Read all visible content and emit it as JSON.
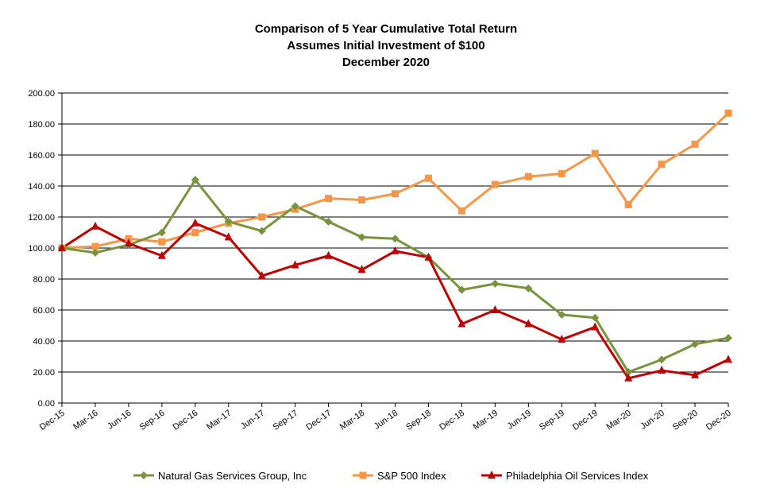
{
  "chart_data": {
    "type": "line",
    "title": "Comparison of 5 Year Cumulative Total Return",
    "subtitle": "Assumes Initial Investment of $100",
    "subtitle2": "December 2020",
    "xlabel": "",
    "ylabel": "",
    "ylim": [
      0,
      200
    ],
    "y_ticks": [
      "0.00",
      "20.00",
      "40.00",
      "60.00",
      "80.00",
      "100.00",
      "120.00",
      "140.00",
      "160.00",
      "180.00",
      "200.00"
    ],
    "grid": true,
    "legend_position": "bottom",
    "categories": [
      "Dec-15",
      "Mar-16",
      "Jun-16",
      "Sep-16",
      "Dec-16",
      "Mar-17",
      "Jun-17",
      "Sep-17",
      "Dec-17",
      "Mar-18",
      "Jun-18",
      "Sep-18",
      "Dec-18",
      "Mar-19",
      "Jun-19",
      "Sep-19",
      "Dec-19",
      "Mar-20",
      "Jun-20",
      "Sep-20",
      "Dec-20"
    ],
    "series": [
      {
        "name": "Natural Gas Services Group, Inc",
        "color": "#77933C",
        "marker": "diamond",
        "values": [
          100,
          97,
          102,
          110,
          144,
          117,
          111,
          127,
          117,
          107,
          106,
          94,
          73,
          77,
          74,
          57,
          55,
          20,
          28,
          38,
          42
        ]
      },
      {
        "name": "S&P 500 Index",
        "color": "#F79646",
        "marker": "square",
        "values": [
          100,
          101,
          106,
          104,
          110,
          116,
          120,
          125,
          132,
          131,
          135,
          145,
          124,
          141,
          146,
          148,
          161,
          128,
          154,
          167,
          187
        ]
      },
      {
        "name": "Philadelphia Oil Services Index",
        "color": "#C00000",
        "marker": "triangle",
        "values": [
          100,
          114,
          103,
          95,
          116,
          107,
          82,
          89,
          95,
          86,
          98,
          94,
          51,
          60,
          51,
          41,
          49,
          16,
          21,
          18,
          28
        ]
      }
    ]
  }
}
